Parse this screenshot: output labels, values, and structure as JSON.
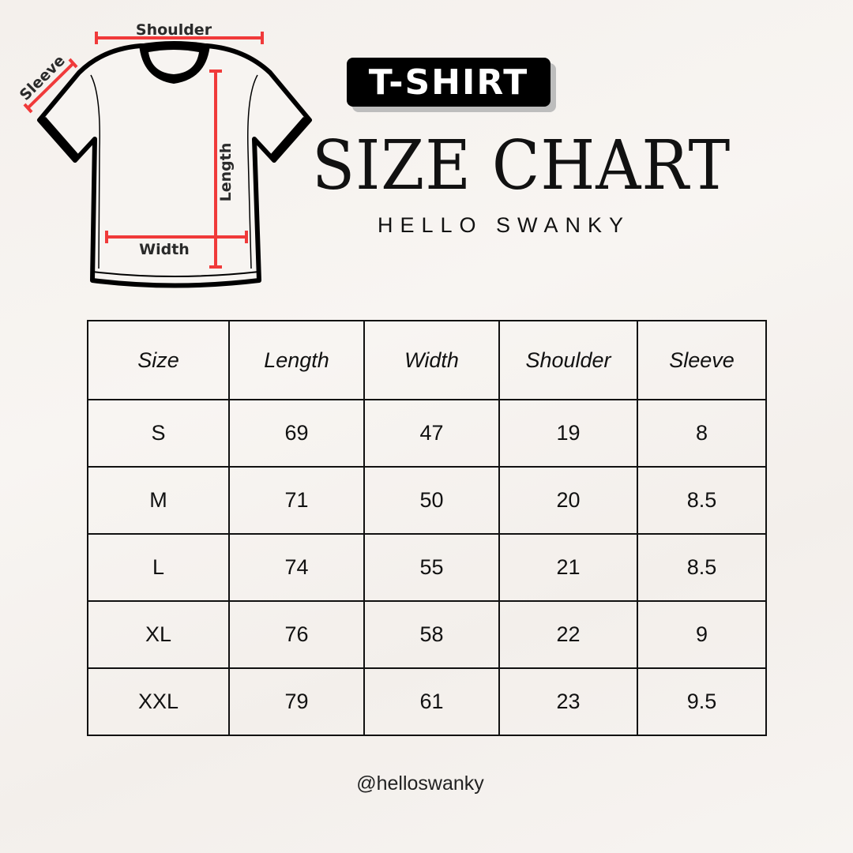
{
  "badge": "T-SHIRT",
  "title": "SIZE CHART",
  "brand": "HELLO SWANKY",
  "diagram": {
    "labels": {
      "shoulder": "Shoulder",
      "sleeve": "Sleeve",
      "length": "Length",
      "width": "Width"
    },
    "measure_color": "#f03a3a"
  },
  "table": {
    "headers": [
      "Size",
      "Length",
      "Width",
      "Shoulder",
      "Sleeve"
    ],
    "rows": [
      [
        "S",
        "69",
        "47",
        "19",
        "8"
      ],
      [
        "M",
        "71",
        "50",
        "20",
        "8.5"
      ],
      [
        "L",
        "74",
        "55",
        "21",
        "8.5"
      ],
      [
        "XL",
        "76",
        "58",
        "22",
        "9"
      ],
      [
        "XXL",
        "79",
        "61",
        "23",
        "9.5"
      ]
    ]
  },
  "handle": "@helloswanky"
}
